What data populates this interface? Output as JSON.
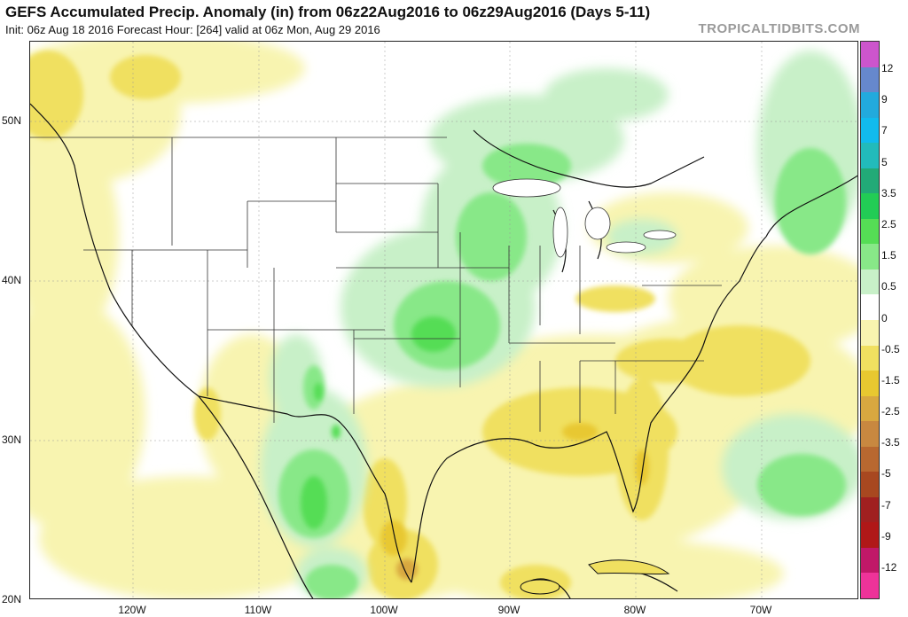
{
  "header": {
    "title": "GEFS Accumulated Precip. Anomaly (in) from 06z22Aug2016 to 06z29Aug2016 (Days 5-11)",
    "subtitle": "Init: 06z Aug 18 2016   Forecast Hour: [264]   valid at 06z Mon, Aug 29 2016",
    "brand": "TROPICALTIDBITS.COM"
  },
  "map": {
    "lat_labels": [
      "50N",
      "40N",
      "30N",
      "20N"
    ],
    "lon_labels": [
      "120W",
      "110W",
      "100W",
      "90W",
      "80W",
      "70W"
    ]
  },
  "colorbar": {
    "labels": [
      "12",
      "9",
      "7",
      "5",
      "3.5",
      "2.5",
      "1.5",
      "0.5",
      "0",
      "-0.5",
      "-1.5",
      "-2.5",
      "-3.5",
      "-5",
      "-7",
      "-9",
      "-12"
    ],
    "colors": [
      "#cc55cc",
      "#6688cc",
      "#22aadd",
      "#11bbee",
      "#22bbbb",
      "#22aa77",
      "#22cc55",
      "#55dd55",
      "#88e888",
      "#c8f0c8",
      "#ffffff",
      "#f8f4b0",
      "#f0e060",
      "#e8c830",
      "#d8a840",
      "#c88840",
      "#b86830",
      "#a84820",
      "#a02020",
      "#b01818",
      "#c01868",
      "#ee3399"
    ]
  }
}
